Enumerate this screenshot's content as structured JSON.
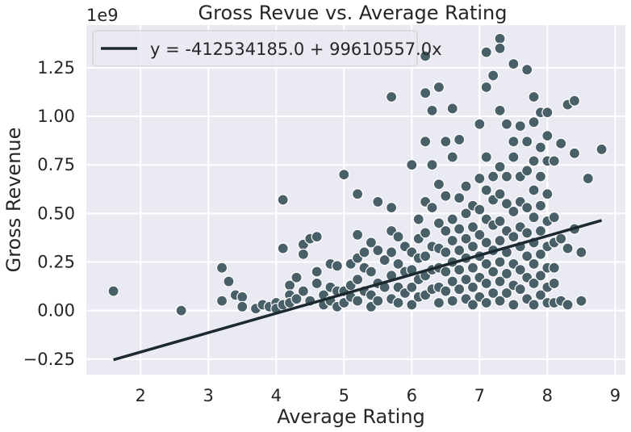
{
  "chart_data": {
    "type": "scatter",
    "title": "Gross Revue vs. Average Rating",
    "xlabel": "Average Rating",
    "ylabel": "Gross Revenue",
    "y_offset_text": "1e9",
    "xlim": [
      1.2,
      9.15
    ],
    "ylim": [
      -0.33,
      1.47
    ],
    "x_ticks": [
      2,
      3,
      4,
      5,
      6,
      7,
      8,
      9
    ],
    "y_ticks": [
      -0.25,
      0.0,
      0.25,
      0.5,
      0.75,
      1.0,
      1.25
    ],
    "x_tick_labels": [
      "2",
      "3",
      "4",
      "5",
      "6",
      "7",
      "8",
      "9"
    ],
    "y_tick_labels": [
      "−0.25",
      "0.00",
      "0.25",
      "0.50",
      "0.75",
      "1.00",
      "1.25"
    ],
    "grid": true,
    "colors": {
      "points": "#4a6068",
      "line": "#1c2a30",
      "background": "#eaeaf2",
      "grid": "#ffffff"
    },
    "fit_line": {
      "label": "y = -412534185.0 + 99610557.0x",
      "intercept": -0.412534185,
      "slope": 0.099610557,
      "x_range": [
        1.6,
        8.8
      ]
    },
    "legend_position": "upper left",
    "points": [
      [
        1.6,
        0.1
      ],
      [
        2.6,
        0.0
      ],
      [
        3.2,
        0.22
      ],
      [
        3.2,
        0.05
      ],
      [
        3.3,
        0.15
      ],
      [
        3.4,
        0.08
      ],
      [
        3.5,
        0.07
      ],
      [
        3.5,
        0.02
      ],
      [
        3.7,
        0.01
      ],
      [
        3.8,
        0.03
      ],
      [
        3.9,
        0.02
      ],
      [
        4.0,
        0.04
      ],
      [
        4.0,
        0.01
      ],
      [
        4.1,
        0.57
      ],
      [
        4.1,
        0.32
      ],
      [
        4.1,
        0.03
      ],
      [
        4.2,
        0.13
      ],
      [
        4.2,
        0.08
      ],
      [
        4.2,
        0.04
      ],
      [
        4.3,
        0.17
      ],
      [
        4.3,
        0.06
      ],
      [
        4.4,
        0.34
      ],
      [
        4.4,
        0.29
      ],
      [
        4.4,
        0.1
      ],
      [
        4.5,
        0.37
      ],
      [
        4.5,
        0.05
      ],
      [
        4.6,
        0.38
      ],
      [
        4.6,
        0.2
      ],
      [
        4.6,
        0.14
      ],
      [
        4.7,
        0.08
      ],
      [
        4.7,
        0.03
      ],
      [
        4.8,
        0.24
      ],
      [
        4.8,
        0.12
      ],
      [
        4.8,
        0.05
      ],
      [
        4.9,
        0.23
      ],
      [
        4.9,
        0.1
      ],
      [
        4.9,
        0.02
      ],
      [
        5.0,
        0.7
      ],
      [
        5.0,
        0.1
      ],
      [
        5.0,
        0.04
      ],
      [
        5.1,
        0.24
      ],
      [
        5.1,
        0.13
      ],
      [
        5.1,
        0.07
      ],
      [
        5.2,
        0.6
      ],
      [
        5.2,
        0.39
      ],
      [
        5.2,
        0.27
      ],
      [
        5.2,
        0.16
      ],
      [
        5.2,
        0.05
      ],
      [
        5.3,
        0.3
      ],
      [
        5.3,
        0.22
      ],
      [
        5.3,
        0.1
      ],
      [
        5.4,
        0.35
      ],
      [
        5.4,
        0.2
      ],
      [
        5.4,
        0.08
      ],
      [
        5.4,
        0.02
      ],
      [
        5.5,
        0.56
      ],
      [
        5.5,
        0.31
      ],
      [
        5.5,
        0.14
      ],
      [
        5.5,
        0.05
      ],
      [
        5.6,
        0.26
      ],
      [
        5.6,
        0.12
      ],
      [
        5.7,
        1.1
      ],
      [
        5.7,
        0.53
      ],
      [
        5.7,
        0.41
      ],
      [
        5.7,
        0.3
      ],
      [
        5.7,
        0.18
      ],
      [
        5.7,
        0.06
      ],
      [
        5.8,
        0.38
      ],
      [
        5.8,
        0.24
      ],
      [
        5.8,
        0.12
      ],
      [
        5.8,
        0.04
      ],
      [
        5.9,
        0.33
      ],
      [
        5.9,
        0.2
      ],
      [
        5.9,
        0.09
      ],
      [
        6.0,
        0.75
      ],
      [
        6.0,
        0.3
      ],
      [
        6.0,
        0.21
      ],
      [
        6.0,
        0.12
      ],
      [
        6.0,
        0.03
      ],
      [
        6.1,
        0.47
      ],
      [
        6.1,
        0.37
      ],
      [
        6.1,
        0.27
      ],
      [
        6.1,
        0.16
      ],
      [
        6.1,
        0.07
      ],
      [
        6.2,
        1.31
      ],
      [
        6.2,
        1.12
      ],
      [
        6.2,
        0.87
      ],
      [
        6.2,
        0.56
      ],
      [
        6.2,
        0.4
      ],
      [
        6.2,
        0.28
      ],
      [
        6.2,
        0.18
      ],
      [
        6.2,
        0.08
      ],
      [
        6.3,
        1.03
      ],
      [
        6.3,
        0.75
      ],
      [
        6.3,
        0.53
      ],
      [
        6.3,
        0.33
      ],
      [
        6.3,
        0.21
      ],
      [
        6.3,
        0.11
      ],
      [
        6.4,
        1.15
      ],
      [
        6.4,
        0.65
      ],
      [
        6.4,
        0.45
      ],
      [
        6.4,
        0.32
      ],
      [
        6.4,
        0.22
      ],
      [
        6.4,
        0.12
      ],
      [
        6.4,
        0.04
      ],
      [
        6.5,
        0.87
      ],
      [
        6.5,
        0.59
      ],
      [
        6.5,
        0.41
      ],
      [
        6.5,
        0.3
      ],
      [
        6.5,
        0.2
      ],
      [
        6.5,
        0.1
      ],
      [
        6.6,
        1.04
      ],
      [
        6.6,
        0.79
      ],
      [
        6.6,
        0.47
      ],
      [
        6.6,
        0.36
      ],
      [
        6.6,
        0.25
      ],
      [
        6.6,
        0.15
      ],
      [
        6.6,
        0.05
      ],
      [
        6.7,
        0.88
      ],
      [
        6.7,
        0.58
      ],
      [
        6.7,
        0.42
      ],
      [
        6.7,
        0.31
      ],
      [
        6.7,
        0.21
      ],
      [
        6.7,
        0.11
      ],
      [
        6.8,
        0.64
      ],
      [
        6.8,
        0.5
      ],
      [
        6.8,
        0.37
      ],
      [
        6.8,
        0.27
      ],
      [
        6.8,
        0.16
      ],
      [
        6.8,
        0.06
      ],
      [
        6.9,
        0.54
      ],
      [
        6.9,
        0.43
      ],
      [
        6.9,
        0.33
      ],
      [
        6.9,
        0.22
      ],
      [
        6.9,
        0.12
      ],
      [
        6.9,
        0.03
      ],
      [
        7.0,
        0.96
      ],
      [
        7.0,
        0.68
      ],
      [
        7.0,
        0.52
      ],
      [
        7.0,
        0.39
      ],
      [
        7.0,
        0.28
      ],
      [
        7.0,
        0.17
      ],
      [
        7.0,
        0.07
      ],
      [
        7.1,
        1.33
      ],
      [
        7.1,
        1.15
      ],
      [
        7.1,
        0.79
      ],
      [
        7.1,
        0.62
      ],
      [
        7.1,
        0.47
      ],
      [
        7.1,
        0.35
      ],
      [
        7.1,
        0.24
      ],
      [
        7.1,
        0.14
      ],
      [
        7.1,
        0.04
      ],
      [
        7.2,
        1.21
      ],
      [
        7.2,
        0.69
      ],
      [
        7.2,
        0.57
      ],
      [
        7.2,
        0.44
      ],
      [
        7.2,
        0.31
      ],
      [
        7.2,
        0.2
      ],
      [
        7.2,
        0.09
      ],
      [
        7.3,
        1.4
      ],
      [
        7.3,
        1.35
      ],
      [
        7.3,
        1.03
      ],
      [
        7.3,
        0.74
      ],
      [
        7.3,
        0.6
      ],
      [
        7.3,
        0.46
      ],
      [
        7.3,
        0.36
      ],
      [
        7.3,
        0.25
      ],
      [
        7.3,
        0.15
      ],
      [
        7.3,
        0.05
      ],
      [
        7.4,
        0.96
      ],
      [
        7.4,
        0.69
      ],
      [
        7.4,
        0.55
      ],
      [
        7.4,
        0.41
      ],
      [
        7.4,
        0.3
      ],
      [
        7.4,
        0.19
      ],
      [
        7.4,
        0.09
      ],
      [
        7.5,
        1.27
      ],
      [
        7.5,
        0.87
      ],
      [
        7.5,
        0.79
      ],
      [
        7.5,
        0.51
      ],
      [
        7.5,
        0.38
      ],
      [
        7.5,
        0.24
      ],
      [
        7.5,
        0.13
      ],
      [
        7.5,
        0.03
      ],
      [
        7.6,
        0.95
      ],
      [
        7.6,
        0.69
      ],
      [
        7.6,
        0.56
      ],
      [
        7.6,
        0.43
      ],
      [
        7.6,
        0.33
      ],
      [
        7.6,
        0.21
      ],
      [
        7.6,
        0.11
      ],
      [
        7.7,
        1.24
      ],
      [
        7.7,
        0.87
      ],
      [
        7.7,
        0.72
      ],
      [
        7.7,
        0.53
      ],
      [
        7.7,
        0.4
      ],
      [
        7.7,
        0.28
      ],
      [
        7.7,
        0.17
      ],
      [
        7.7,
        0.06
      ],
      [
        7.8,
        1.1
      ],
      [
        7.8,
        0.97
      ],
      [
        7.8,
        0.77
      ],
      [
        7.8,
        0.62
      ],
      [
        7.8,
        0.48
      ],
      [
        7.8,
        0.35
      ],
      [
        7.8,
        0.24
      ],
      [
        7.8,
        0.14
      ],
      [
        7.8,
        0.03
      ],
      [
        7.9,
        1.02
      ],
      [
        7.9,
        0.84
      ],
      [
        7.9,
        0.69
      ],
      [
        7.9,
        0.54
      ],
      [
        7.9,
        0.41
      ],
      [
        7.9,
        0.29
      ],
      [
        7.9,
        0.18
      ],
      [
        7.9,
        0.08
      ],
      [
        8.0,
        1.02
      ],
      [
        8.0,
        0.9
      ],
      [
        8.0,
        0.77
      ],
      [
        8.0,
        0.6
      ],
      [
        8.0,
        0.46
      ],
      [
        8.0,
        0.33
      ],
      [
        8.0,
        0.22
      ],
      [
        8.0,
        0.12
      ],
      [
        8.0,
        0.04
      ],
      [
        8.1,
        0.77
      ],
      [
        8.1,
        0.48
      ],
      [
        8.1,
        0.35
      ],
      [
        8.1,
        0.22
      ],
      [
        8.1,
        0.14
      ],
      [
        8.1,
        0.04
      ],
      [
        8.2,
        0.86
      ],
      [
        8.2,
        0.37
      ],
      [
        8.2,
        0.05
      ],
      [
        8.3,
        1.06
      ],
      [
        8.3,
        0.32
      ],
      [
        8.3,
        0.03
      ],
      [
        8.4,
        1.08
      ],
      [
        8.4,
        0.81
      ],
      [
        8.4,
        0.42
      ],
      [
        8.5,
        0.3
      ],
      [
        8.5,
        0.05
      ],
      [
        8.6,
        0.68
      ],
      [
        8.8,
        0.83
      ]
    ]
  }
}
